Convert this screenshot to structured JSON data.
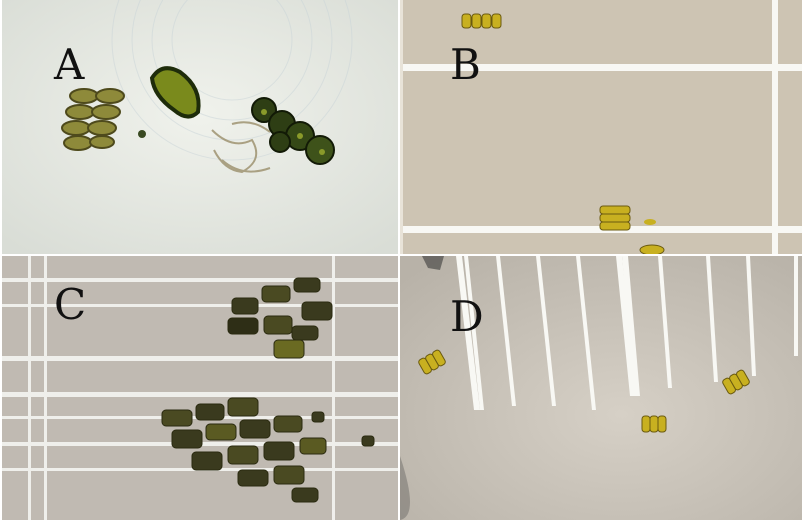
{
  "figure": {
    "panels": [
      {
        "label": "A"
      },
      {
        "label": "B"
      },
      {
        "label": "C"
      },
      {
        "label": "D"
      }
    ]
  },
  "colors": {
    "panel_a_background": "#e8ebe4",
    "panel_b_background": "#cfc6b6",
    "panel_c_background": "#c3bdb4",
    "panel_d_background": "#cdc7bd",
    "grid_line": "#f6f6f2",
    "cell_green_yellow": "#a8a62a",
    "cell_dark_green": "#2a3a12",
    "cell_olive": "#6b6a22"
  }
}
